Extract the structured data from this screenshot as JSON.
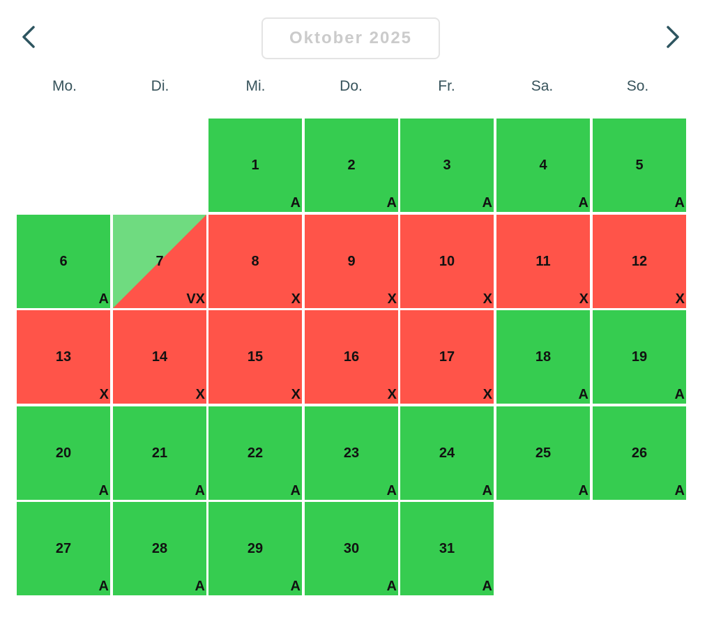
{
  "header": {
    "month_label": "Oktober 2025",
    "prev_icon": "chevron-left-icon",
    "next_icon": "chevron-right-icon"
  },
  "weekdays": [
    "Mo.",
    "Di.",
    "Mi.",
    "Do.",
    "Fr.",
    "Sa.",
    "So."
  ],
  "colors": {
    "available": "#36cc50",
    "available_light": "#6fdb80",
    "unavailable": "#ff5449",
    "nav_icon": "#2e5560",
    "title_text": "#cbcbcb"
  },
  "days": [
    {
      "day": "1",
      "status": "A",
      "state": "available"
    },
    {
      "day": "2",
      "status": "A",
      "state": "available"
    },
    {
      "day": "3",
      "status": "A",
      "state": "available"
    },
    {
      "day": "4",
      "status": "A",
      "state": "available"
    },
    {
      "day": "5",
      "status": "A",
      "state": "available"
    },
    {
      "day": "6",
      "status": "A",
      "state": "available"
    },
    {
      "day": "7",
      "status": "VX",
      "state": "split"
    },
    {
      "day": "8",
      "status": "X",
      "state": "unavailable"
    },
    {
      "day": "9",
      "status": "X",
      "state": "unavailable"
    },
    {
      "day": "10",
      "status": "X",
      "state": "unavailable"
    },
    {
      "day": "11",
      "status": "X",
      "state": "unavailable"
    },
    {
      "day": "12",
      "status": "X",
      "state": "unavailable"
    },
    {
      "day": "13",
      "status": "X",
      "state": "unavailable"
    },
    {
      "day": "14",
      "status": "X",
      "state": "unavailable"
    },
    {
      "day": "15",
      "status": "X",
      "state": "unavailable"
    },
    {
      "day": "16",
      "status": "X",
      "state": "unavailable"
    },
    {
      "day": "17",
      "status": "X",
      "state": "unavailable"
    },
    {
      "day": "18",
      "status": "A",
      "state": "available"
    },
    {
      "day": "19",
      "status": "A",
      "state": "available"
    },
    {
      "day": "20",
      "status": "A",
      "state": "available"
    },
    {
      "day": "21",
      "status": "A",
      "state": "available"
    },
    {
      "day": "22",
      "status": "A",
      "state": "available"
    },
    {
      "day": "23",
      "status": "A",
      "state": "available"
    },
    {
      "day": "24",
      "status": "A",
      "state": "available"
    },
    {
      "day": "25",
      "status": "A",
      "state": "available"
    },
    {
      "day": "26",
      "status": "A",
      "state": "available"
    },
    {
      "day": "27",
      "status": "A",
      "state": "available"
    },
    {
      "day": "28",
      "status": "A",
      "state": "available"
    },
    {
      "day": "29",
      "status": "A",
      "state": "available"
    },
    {
      "day": "30",
      "status": "A",
      "state": "available"
    },
    {
      "day": "31",
      "status": "A",
      "state": "available"
    }
  ]
}
